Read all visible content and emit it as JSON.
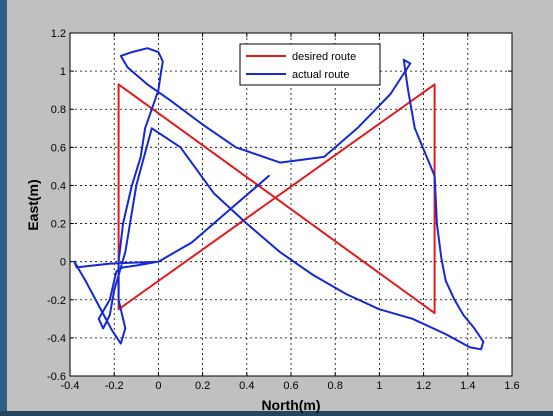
{
  "colors": {
    "desired": "#e31a1c",
    "actual": "#1428d4",
    "figure_bg": "#c0c0c0",
    "plot_bg": "#ffffff"
  },
  "chart_data": {
    "type": "line",
    "xlabel": "North(m)",
    "ylabel": "East(m)",
    "xlim": [
      -0.4,
      1.6
    ],
    "ylim": [
      -0.6,
      1.2
    ],
    "xticks": [
      "-0.4",
      "-0.2",
      "0",
      "0.2",
      "0.4",
      "0.6",
      "0.8",
      "1",
      "1.2",
      "1.4",
      "1.6"
    ],
    "yticks": [
      "-0.6",
      "-0.4",
      "-0.2",
      "0",
      "0.2",
      "0.4",
      "0.6",
      "0.8",
      "1",
      "1.2"
    ],
    "grid": true,
    "legend_position": "top-center",
    "series": [
      {
        "name": "desired route",
        "color": "#e31a1c",
        "x": [
          -0.18,
          -0.18,
          1.25,
          1.25,
          -0.18
        ],
        "y": [
          -0.25,
          0.93,
          -0.27,
          0.93,
          -0.25
        ]
      },
      {
        "name": "actual route",
        "color": "#1428d4",
        "x": [
          0.0,
          -0.22,
          -0.37,
          -0.38,
          -0.33,
          -0.27,
          -0.21,
          -0.17,
          -0.15,
          -0.18,
          -0.18,
          -0.16,
          -0.12,
          -0.08,
          -0.06,
          -0.03,
          0.0,
          0.01,
          0.02,
          0.0,
          -0.05,
          -0.12,
          -0.17,
          -0.14,
          -0.05,
          0.05,
          0.2,
          0.35,
          0.55,
          0.75,
          0.9,
          1.05,
          1.14,
          1.11,
          1.13,
          1.16,
          1.25,
          1.26,
          1.28,
          1.3,
          1.34,
          1.38,
          1.43,
          1.47,
          1.46,
          1.41,
          1.3,
          1.15,
          1.0,
          0.85,
          0.7,
          0.55,
          0.4,
          0.25,
          0.1,
          -0.03,
          -0.1,
          -0.15,
          -0.2,
          -0.22,
          -0.25,
          -0.27,
          -0.22,
          -0.2,
          -0.19,
          -0.16,
          -0.1,
          0.0,
          0.15,
          0.3,
          0.5
        ],
        "y": [
          0.0,
          -0.01,
          -0.03,
          0.0,
          -0.1,
          -0.23,
          -0.36,
          -0.43,
          -0.35,
          -0.2,
          0.0,
          0.2,
          0.4,
          0.55,
          0.7,
          0.8,
          0.9,
          0.98,
          1.05,
          1.1,
          1.12,
          1.1,
          1.08,
          1.02,
          0.93,
          0.85,
          0.72,
          0.6,
          0.52,
          0.55,
          0.7,
          0.88,
          1.04,
          1.06,
          0.9,
          0.7,
          0.45,
          0.2,
          0.02,
          -0.1,
          -0.2,
          -0.28,
          -0.35,
          -0.42,
          -0.46,
          -0.45,
          -0.38,
          -0.3,
          -0.25,
          -0.17,
          -0.07,
          0.05,
          0.2,
          0.36,
          0.6,
          0.7,
          0.4,
          0.05,
          -0.15,
          -0.28,
          -0.35,
          -0.3,
          -0.2,
          -0.1,
          -0.05,
          -0.03,
          -0.02,
          0.0,
          0.1,
          0.25,
          0.45
        ]
      }
    ]
  }
}
